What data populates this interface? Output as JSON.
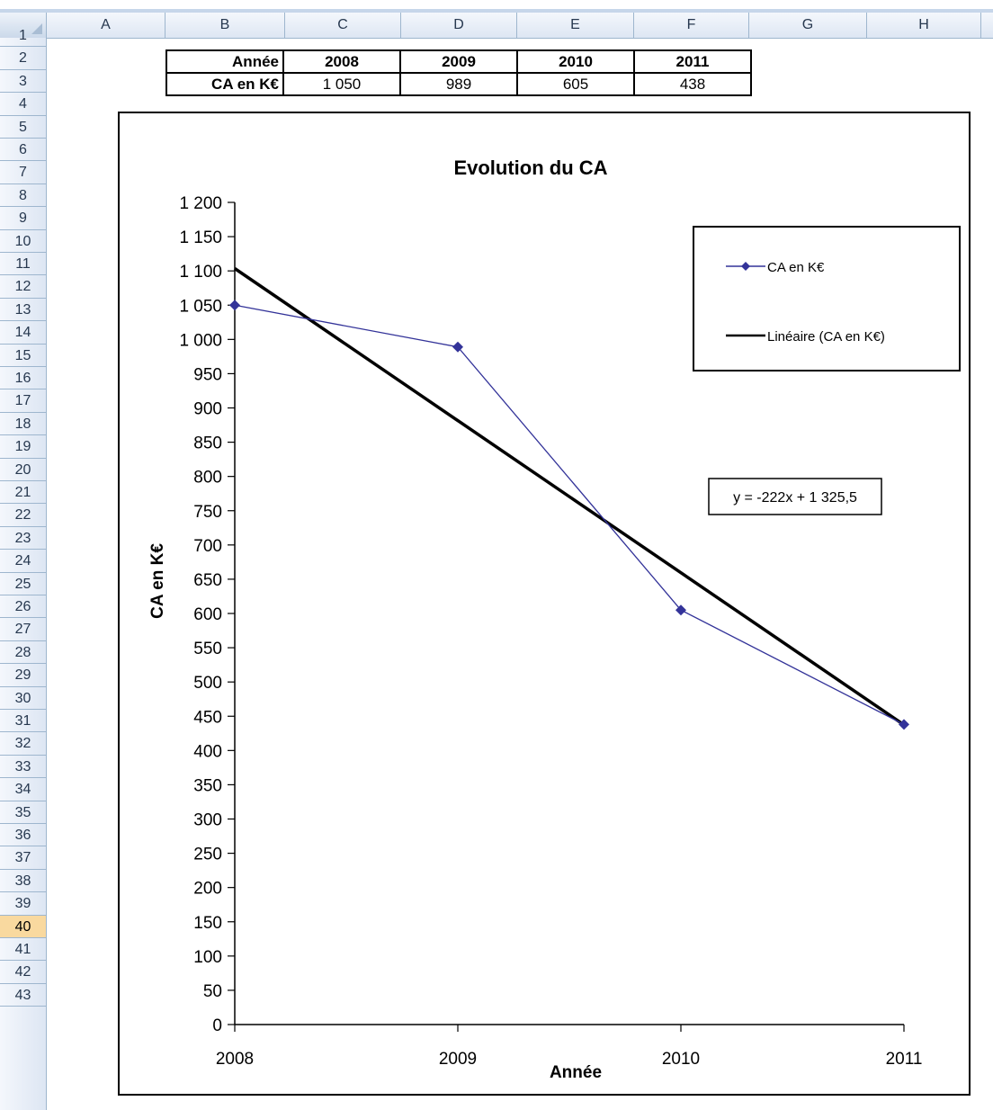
{
  "columns": [
    "A",
    "B",
    "C",
    "D",
    "E",
    "F",
    "G",
    "H"
  ],
  "rows": [
    "1",
    "2",
    "3",
    "4",
    "5",
    "6",
    "7",
    "8",
    "9",
    "10",
    "11",
    "12",
    "13",
    "14",
    "15",
    "16",
    "17",
    "18",
    "19",
    "20",
    "21",
    "22",
    "23",
    "24",
    "25",
    "26",
    "27",
    "28",
    "29",
    "30",
    "31",
    "32",
    "33",
    "34",
    "35",
    "36",
    "37",
    "38",
    "39",
    "40",
    "41",
    "42",
    "43"
  ],
  "selected_row": "40",
  "table": {
    "header_label": "Année",
    "years": [
      "2008",
      "2009",
      "2010",
      "2011"
    ],
    "value_label": "CA en K€",
    "values": [
      "1 050",
      "989",
      "605",
      "438"
    ]
  },
  "chart_data": {
    "type": "line",
    "title": "Evolution du CA",
    "xlabel": "Année",
    "ylabel": "CA en K€",
    "categories": [
      "2008",
      "2009",
      "2010",
      "2011"
    ],
    "y_ticks": [
      "0",
      "50",
      "100",
      "150",
      "200",
      "250",
      "300",
      "350",
      "400",
      "450",
      "500",
      "550",
      "600",
      "650",
      "700",
      "750",
      "800",
      "850",
      "900",
      "950",
      "1 000",
      "1 050",
      "1 100",
      "1 150",
      "1 200"
    ],
    "ylim": [
      0,
      1200
    ],
    "series": [
      {
        "name": "CA en K€",
        "values": [
          1050,
          989,
          605,
          438
        ],
        "color": "#333399",
        "marker": "diamond"
      }
    ],
    "trendline": {
      "name": "Linéaire (CA en K€)",
      "values": [
        1103.5,
        881.5,
        659.5,
        437.5
      ],
      "color": "#000000"
    },
    "equation": "y = -222x + 1 325,5",
    "legend_position": "top-right"
  }
}
